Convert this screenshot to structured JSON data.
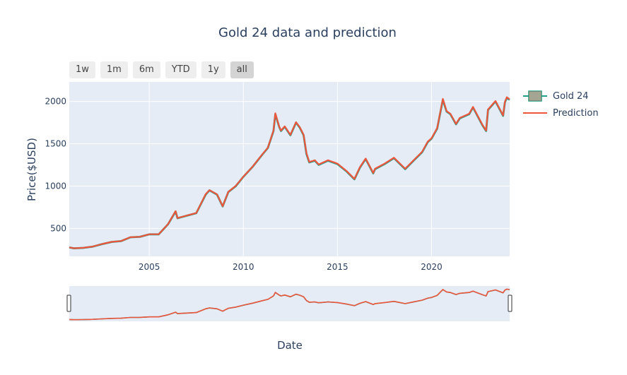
{
  "title": "Gold 24 data and prediction",
  "range_buttons": [
    {
      "label": "1w",
      "active": false
    },
    {
      "label": "1m",
      "active": false
    },
    {
      "label": "6m",
      "active": false
    },
    {
      "label": "YTD",
      "active": false
    },
    {
      "label": "1y",
      "active": false
    },
    {
      "label": "all",
      "active": true
    }
  ],
  "colors": {
    "actual": "#1f9e89",
    "prediction": "#ef553b",
    "plot_bg": "#e5ecf6",
    "grid": "#ffffff"
  },
  "chart_data": {
    "type": "line",
    "title": "Gold 24 data and prediction",
    "xlabel": "Date",
    "ylabel": "Price($USD)",
    "x_ticks": [
      "2005",
      "2010",
      "2015",
      "2020"
    ],
    "y_ticks": [
      "500",
      "1000",
      "1500",
      "2000"
    ],
    "xlim": [
      2000.75,
      2024.15
    ],
    "ylim": [
      170,
      2230
    ],
    "legend_position": "top-right",
    "rangeslider": true,
    "x": [
      2000.75,
      2001.0,
      2001.5,
      2002.0,
      2002.5,
      2003.0,
      2003.5,
      2004.0,
      2004.5,
      2005.0,
      2005.5,
      2006.0,
      2006.4,
      2006.5,
      2007.0,
      2007.5,
      2008.0,
      2008.2,
      2008.6,
      2008.9,
      2009.2,
      2009.6,
      2010.0,
      2010.5,
      2011.0,
      2011.3,
      2011.6,
      2011.7,
      2011.9,
      2012.0,
      2012.2,
      2012.5,
      2012.8,
      2013.0,
      2013.2,
      2013.35,
      2013.5,
      2013.8,
      2014.0,
      2014.5,
      2015.0,
      2015.5,
      2015.9,
      2016.2,
      2016.5,
      2016.9,
      2017.0,
      2017.5,
      2018.0,
      2018.6,
      2019.0,
      2019.5,
      2019.8,
      2020.0,
      2020.3,
      2020.6,
      2020.8,
      2021.0,
      2021.3,
      2021.5,
      2022.0,
      2022.2,
      2022.7,
      2022.9,
      2023.0,
      2023.4,
      2023.8,
      2023.9,
      2024.0,
      2024.15
    ],
    "series": [
      {
        "name": "Gold 24",
        "values": [
          275,
          265,
          270,
          285,
          315,
          340,
          350,
          395,
          400,
          430,
          430,
          550,
          700,
          620,
          650,
          680,
          900,
          950,
          900,
          760,
          930,
          1000,
          1110,
          1230,
          1370,
          1450,
          1650,
          1850,
          1700,
          1650,
          1700,
          1600,
          1750,
          1690,
          1600,
          1380,
          1280,
          1300,
          1250,
          1300,
          1260,
          1170,
          1080,
          1220,
          1320,
          1150,
          1200,
          1260,
          1330,
          1200,
          1290,
          1400,
          1520,
          1560,
          1680,
          2020,
          1880,
          1850,
          1730,
          1800,
          1850,
          1930,
          1720,
          1650,
          1900,
          2000,
          1830,
          1990,
          2040,
          2020
        ]
      },
      {
        "name": "Prediction",
        "values": [
          276,
          266,
          271,
          286,
          316,
          341,
          351,
          396,
          401,
          431,
          431,
          552,
          705,
          622,
          652,
          682,
          905,
          952,
          902,
          762,
          932,
          1003,
          1112,
          1232,
          1373,
          1453,
          1655,
          1860,
          1705,
          1655,
          1705,
          1605,
          1755,
          1695,
          1605,
          1390,
          1285,
          1305,
          1255,
          1305,
          1265,
          1175,
          1085,
          1225,
          1325,
          1155,
          1205,
          1265,
          1335,
          1205,
          1295,
          1405,
          1525,
          1565,
          1685,
          2030,
          1885,
          1855,
          1735,
          1805,
          1855,
          1935,
          1725,
          1655,
          1905,
          2005,
          1835,
          1995,
          2050,
          2025
        ]
      }
    ]
  }
}
